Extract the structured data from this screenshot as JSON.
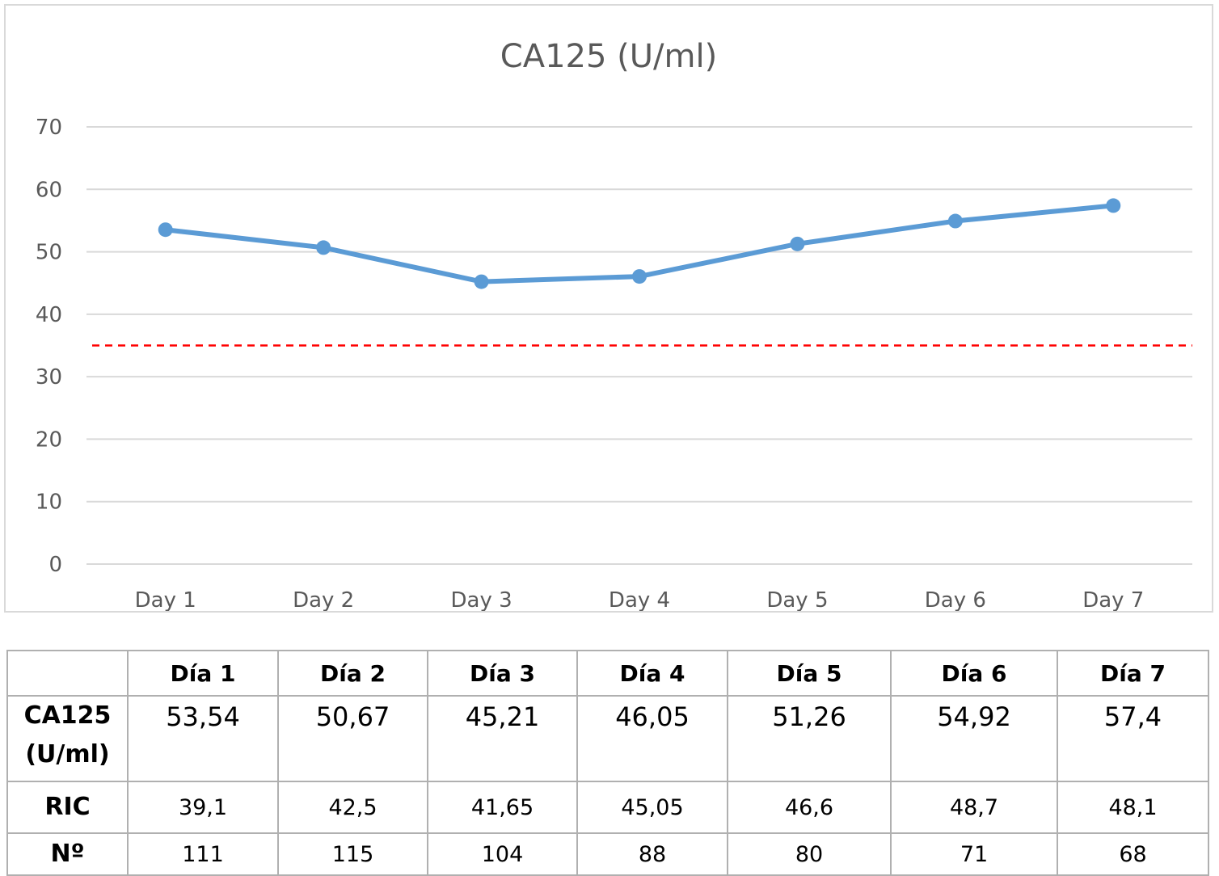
{
  "chart_data": {
    "type": "line",
    "title": "CA125 (U/ml)",
    "xlabel": "",
    "ylabel": "",
    "categories": [
      "Day 1",
      "Day 2",
      "Day 3",
      "Day 4",
      "Day 5",
      "Day 6",
      "Day 7"
    ],
    "series": [
      {
        "values": [
          53.54,
          50.67,
          45.21,
          46.05,
          51.26,
          54.92,
          57.4
        ],
        "color": "#5b9bd5"
      }
    ],
    "reference_line": {
      "value": 35,
      "color": "#ff0000",
      "style": "dashed"
    },
    "ylim": [
      0,
      70
    ],
    "yticks": [
      0,
      10,
      20,
      30,
      40,
      50,
      60,
      70
    ],
    "grid": true,
    "legend": "none"
  },
  "table": {
    "headers": [
      "",
      "Día 1",
      "Día 2",
      "Día 3",
      "Día 4",
      "Día 5",
      "Día 6",
      "Día 7"
    ],
    "rows": [
      {
        "label_line1": "CA125",
        "label_line2": "(U/ml)",
        "values": [
          "53,54",
          "50,67",
          "45,21",
          "46,05",
          "51,26",
          "54,92",
          "57,4"
        ]
      },
      {
        "label_line1": "RIC",
        "values": [
          "39,1",
          "42,5",
          "41,65",
          "45,05",
          "46,6",
          "48,7",
          "48,1"
        ]
      },
      {
        "label_line1": "Nº",
        "values": [
          "111",
          "115",
          "104",
          "88",
          "80",
          "71",
          "68"
        ]
      }
    ]
  }
}
